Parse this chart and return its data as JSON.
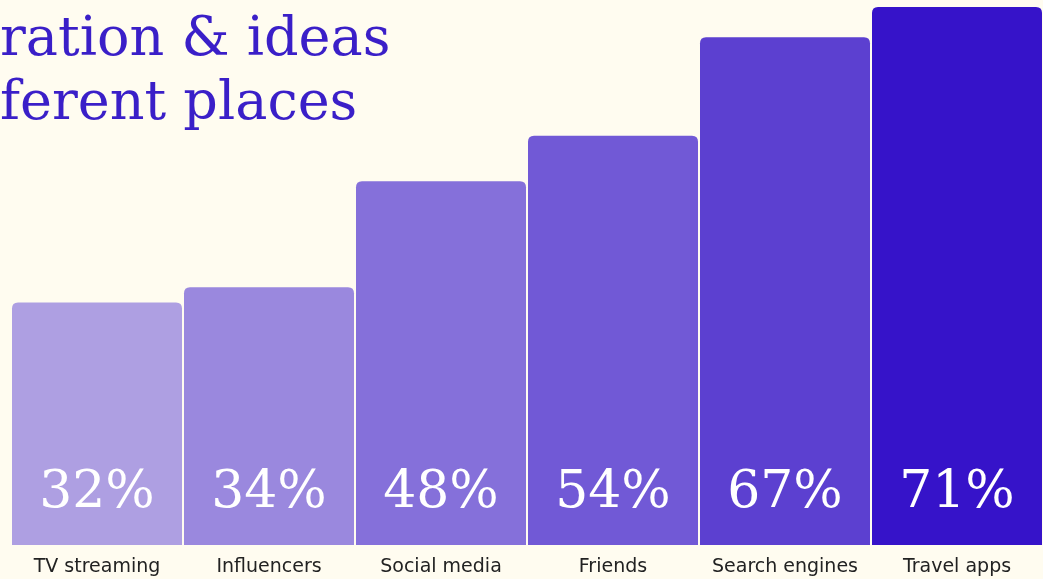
{
  "chart_data": {
    "type": "bar",
    "title": "ration & ideas\nferent places",
    "categories": [
      "TV streaming",
      "Influencers",
      "Social media",
      "Friends",
      "Search engines",
      "Travel apps"
    ],
    "values": [
      32,
      34,
      48,
      54,
      67,
      71
    ],
    "colors": [
      "#ae9fe2",
      "#9a88de",
      "#8570da",
      "#7159d6",
      "#5c40d0",
      "#3613c9"
    ],
    "value_labels": [
      "32%",
      "34%",
      "48%",
      "54%",
      "67%",
      "71%"
    ]
  }
}
